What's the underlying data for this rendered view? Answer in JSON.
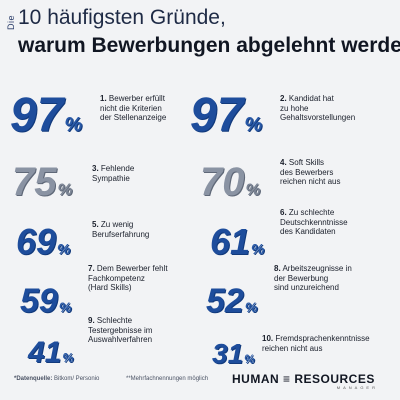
{
  "header": {
    "prefix": "Die",
    "title_line1": "10 häufigsten Gründe,",
    "title_line2": "warum Bewerbungen abgelehnt werden"
  },
  "reasons": [
    {
      "num": "97",
      "sign": "%",
      "index": "1.",
      "text_lines": [
        "Bewerber erfüllt",
        "nicht die Kriterien",
        "der Stellenanzeige"
      ],
      "style": "blue"
    },
    {
      "num": "97",
      "sign": "%",
      "index": "2.",
      "text_lines": [
        "Kandidat hat",
        "zu hohe",
        "Gehaltsvorstellungen"
      ],
      "style": "blue"
    },
    {
      "num": "75",
      "sign": "%",
      "index": "3.",
      "text_lines": [
        "Fehlende",
        "Sympathie"
      ],
      "style": "grey"
    },
    {
      "num": "70",
      "sign": "%",
      "index": "4.",
      "text_lines": [
        "Soft Skills",
        "des Bewerbers",
        "reichen nicht aus"
      ],
      "style": "grey"
    },
    {
      "num": "69",
      "sign": "%",
      "index": "5.",
      "text_lines": [
        "Zu wenig",
        "Berufserfahrung"
      ],
      "style": "blue"
    },
    {
      "num": "61",
      "sign": "%",
      "index": "6.",
      "text_lines": [
        "Zu schlechte",
        "Deutschkenntnisse",
        "des Kandidaten"
      ],
      "style": "blue"
    },
    {
      "num": "59",
      "sign": "%",
      "index": "7.",
      "text_lines": [
        "Dem Bewerber fehlt",
        "Fachkompetenz",
        "(Hard Skills)"
      ],
      "style": "blue"
    },
    {
      "num": "52",
      "sign": "%",
      "index": "8.",
      "text_lines": [
        "Arbeitszeugnisse in",
        "der Bewerbung",
        "sind unzureichend"
      ],
      "style": "blue"
    },
    {
      "num": "41",
      "sign": "%",
      "index": "9.",
      "text_lines": [
        "Schlechte",
        "Testergebnisse im",
        "Auswahlverfahren"
      ],
      "style": "blue"
    },
    {
      "num": "31",
      "sign": "%",
      "index": "10.",
      "text_lines": [
        "Fremdsprachenkenntnisse",
        "reichen nicht aus"
      ],
      "style": "blue"
    }
  ],
  "footer": {
    "source_label": "*Datenquelle:",
    "source_value": "Bitkom/ Personio",
    "note": "**Mehrfachnennungen möglich"
  },
  "logo": {
    "main": "HUMAN ≡ RESOURCES",
    "sub": "MANAGER"
  },
  "colors": {
    "accent_blue": "#1e4d9c",
    "accent_grey": "#8a93a3",
    "background": "#f2f3f5"
  }
}
